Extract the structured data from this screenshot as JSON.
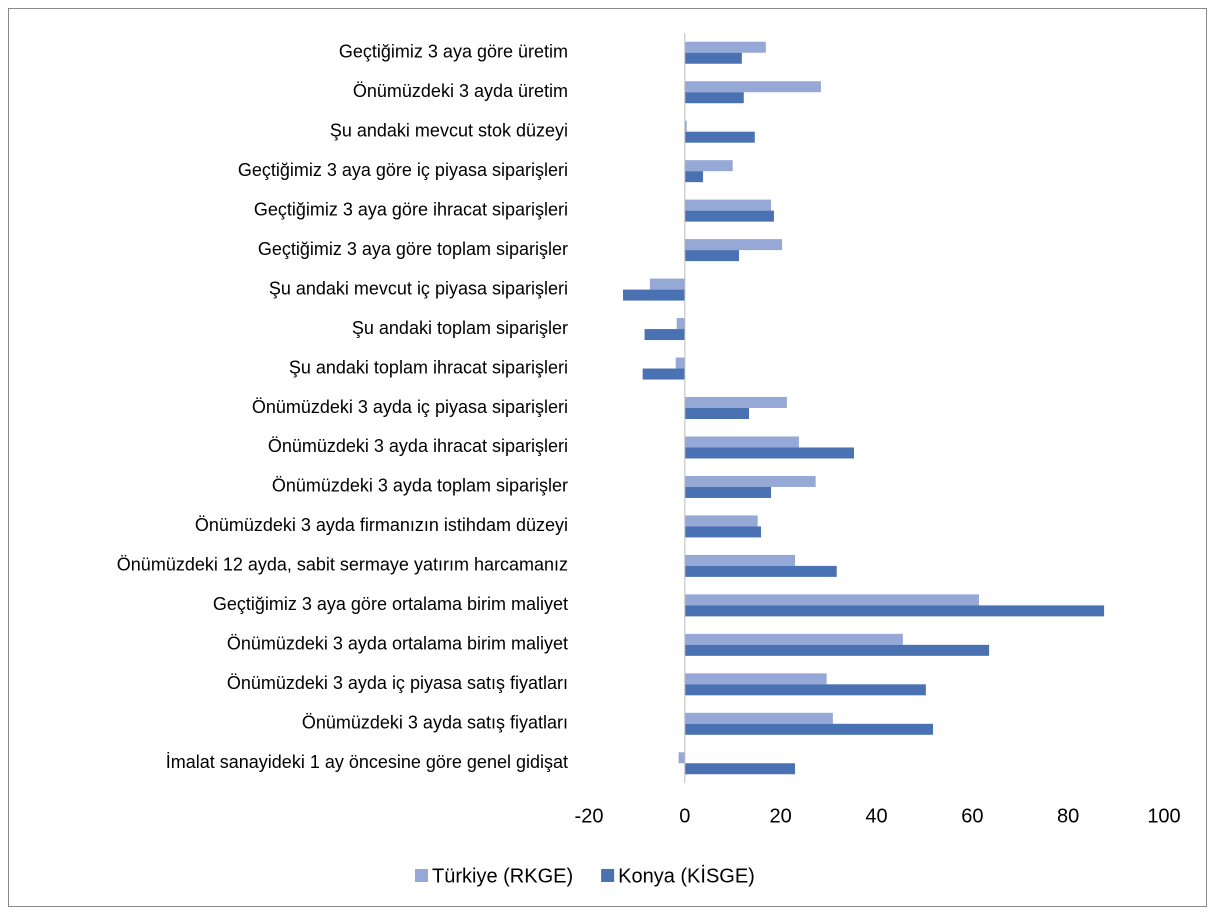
{
  "chart_data": {
    "type": "bar",
    "orientation": "horizontal",
    "categories": [
      "Geçtiğimiz 3 aya göre üretim",
      "Önümüzdeki 3 ayda üretim",
      "Şu andaki mevcut stok düzeyi",
      "Geçtiğimiz 3 aya göre iç piyasa siparişleri",
      "Geçtiğimiz 3 aya göre ihracat siparişleri",
      "Geçtiğimiz 3 aya göre toplam siparişler",
      "Şu andaki mevcut iç piyasa siparişleri",
      "Şu andaki toplam siparişler",
      "Şu andaki toplam ihracat siparişleri",
      "Önümüzdeki 3 ayda iç piyasa siparişleri",
      "Önümüzdeki 3 ayda ihracat siparişleri",
      "Önümüzdeki 3 ayda toplam siparişler",
      "Önümüzdeki 3 ayda firmanızın istihdam düzeyi",
      "Önümüzdeki 12 ayda, sabit sermaye yatırım harcamanız",
      "Geçtiğimiz 3 aya göre ortalama birim maliyet",
      "Önümüzdeki 3 ayda ortalama birim maliyet",
      "Önümüzdeki 3 ayda iç piyasa satış fiyatları",
      "Önümüzdeki 3 ayda satış fiyatları",
      "İmalat sanayideki 1 ay öncesine göre genel gidişat"
    ],
    "series": [
      {
        "name": "Türkiye (RKGE)",
        "color": "#95a8d6",
        "values": [
          16.9,
          28.4,
          0.4,
          10,
          18,
          20.3,
          -7.3,
          -1.7,
          -1.9,
          21.3,
          23.8,
          27.3,
          15.2,
          23,
          61.4,
          45.5,
          29.6,
          30.9,
          -1.3
        ]
      },
      {
        "name": "Konya (KİSGE)",
        "color": "#4a72b2",
        "values": [
          11.9,
          12.3,
          14.6,
          3.8,
          18.6,
          11.3,
          -12.9,
          -8.4,
          -8.8,
          13.4,
          35.3,
          18,
          15.9,
          31.7,
          87.5,
          63.5,
          50.3,
          51.8,
          23
        ]
      }
    ],
    "xlim": [
      -20,
      100
    ],
    "xticks": [
      -20,
      0,
      20,
      40,
      60,
      80,
      100
    ],
    "legend": "bottom"
  }
}
